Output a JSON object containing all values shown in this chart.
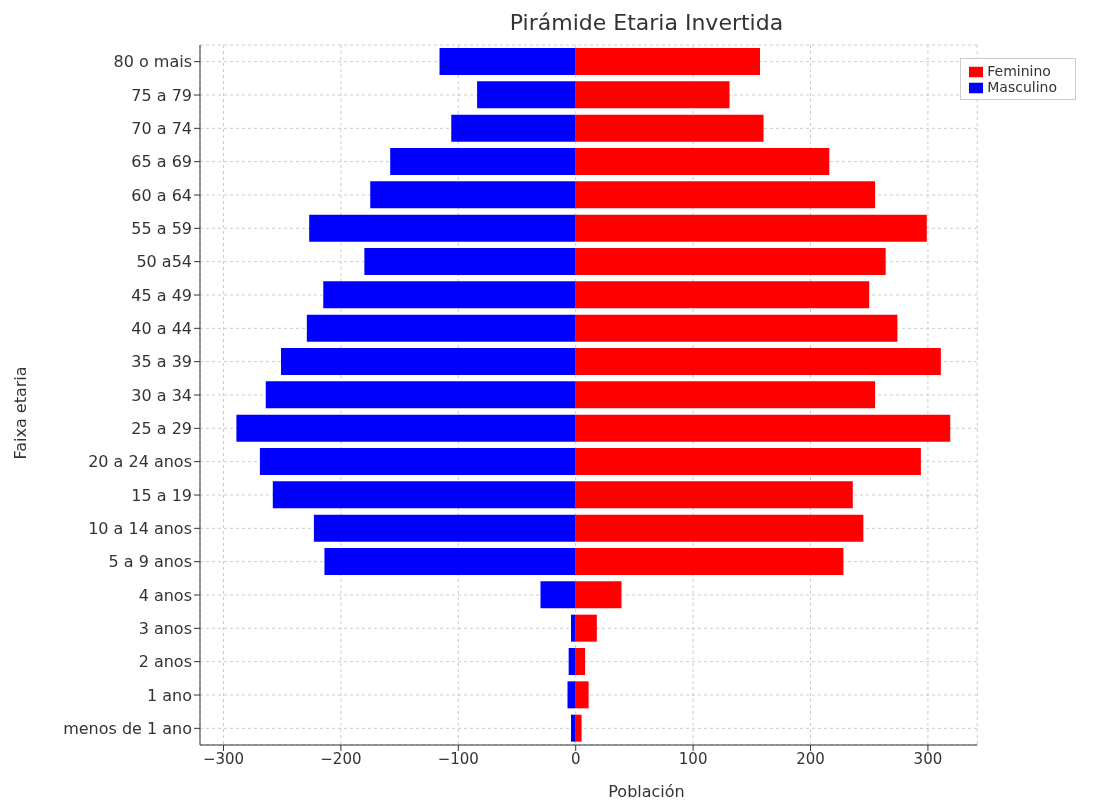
{
  "chart_data": {
    "type": "bar",
    "title": "Pirámide Etaria Invertida",
    "xlabel": "Población",
    "ylabel": "Faixa etaria",
    "orientation": "horizontal",
    "stacked": true,
    "categories": [
      "80 o mais",
      "75 a 79",
      "70 a 74",
      "65 a 69",
      "60 a 64",
      "55 a 59",
      "50 a54",
      "45 a 49",
      "40 a 44",
      "35 a 39",
      "30 a 34",
      "25 a 29",
      "20 a 24 anos",
      "15 a 19",
      "10 a 14 anos",
      "5 a 9 anos",
      "4 anos",
      "3 anos",
      "2 anos",
      "1 ano",
      "menos de 1 ano"
    ],
    "series": [
      {
        "name": "Masculino",
        "color": "#0000ff",
        "values": [
          -116,
          -84,
          -106,
          -158,
          -175,
          -227,
          -180,
          -215,
          -229,
          -251,
          -264,
          -289,
          -269,
          -258,
          -223,
          -214,
          -30,
          -4,
          -6,
          -7,
          -4
        ]
      },
      {
        "name": "Feminino",
        "color": "#ff0000",
        "values": [
          157,
          131,
          160,
          216,
          255,
          299,
          264,
          250,
          274,
          311,
          255,
          319,
          294,
          236,
          245,
          228,
          39,
          18,
          8,
          11,
          5
        ]
      }
    ],
    "xlim": [
      -320,
      342
    ],
    "xticks": [
      {
        "value": -300,
        "label": "−300"
      },
      {
        "value": -200,
        "label": "−200"
      },
      {
        "value": -100,
        "label": "−100"
      },
      0,
      100,
      200,
      300
    ],
    "grid": true,
    "legend": "top right"
  }
}
